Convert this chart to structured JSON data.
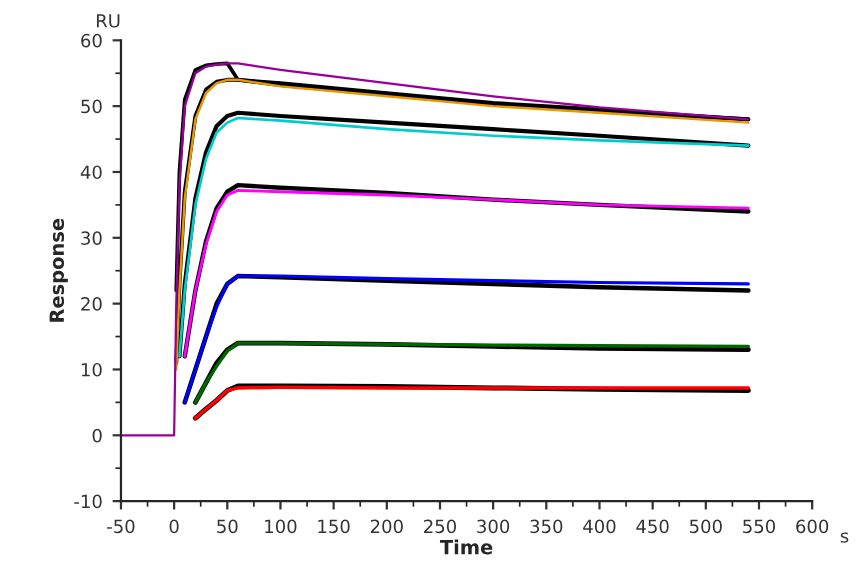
{
  "chart_data": {
    "type": "line",
    "xlabel": "Time",
    "ylabel": "Response",
    "annotations": [
      "RU",
      "s"
    ],
    "xlim": [
      -50,
      600
    ],
    "xticks": [
      -50,
      0,
      50,
      100,
      150,
      200,
      250,
      300,
      350,
      400,
      450,
      500,
      550,
      600
    ],
    "ylim": [
      -10,
      60
    ],
    "yticks": [
      -10,
      0,
      10,
      20,
      30,
      40,
      50,
      60
    ],
    "grid": false,
    "legend": false,
    "marker": "none",
    "line_style": "solid",
    "series": [
      {
        "color": "#000000",
        "x": [
          20,
          30,
          40,
          50,
          60,
          100,
          200,
          300,
          400,
          540
        ],
        "values": [
          2.6,
          4,
          5.3,
          6.8,
          7.5,
          7.5,
          7.4,
          7.2,
          7,
          6.8
        ]
      },
      {
        "color": "#000000",
        "x": [
          20,
          30,
          40,
          50,
          60,
          100,
          200,
          300,
          400,
          540
        ],
        "values": [
          5,
          8,
          11,
          13,
          14,
          14,
          13.8,
          13.5,
          13.2,
          13
        ]
      },
      {
        "color": "#000000",
        "x": [
          10,
          20,
          30,
          40,
          50,
          60,
          100,
          200,
          300,
          400,
          540
        ],
        "values": [
          5,
          10,
          15,
          20,
          23,
          24.2,
          24,
          23.5,
          23,
          22.5,
          22
        ]
      },
      {
        "color": "#000000",
        "x": [
          10,
          20,
          30,
          40,
          50,
          60,
          100,
          200,
          300,
          400,
          540
        ],
        "values": [
          12,
          22,
          29.5,
          34.5,
          37,
          38,
          37.6,
          36.8,
          35.8,
          35,
          34
        ]
      },
      {
        "color": "#000000",
        "x": [
          5,
          10,
          20,
          30,
          40,
          50,
          60,
          100,
          200,
          300,
          400,
          540
        ],
        "values": [
          12,
          23,
          36,
          43,
          47,
          48.5,
          49,
          48.5,
          47.5,
          46.5,
          45.5,
          44
        ]
      },
      {
        "color": "#000000",
        "x": [
          2,
          5,
          10,
          20,
          30,
          40,
          50,
          60,
          100,
          200,
          300,
          400,
          540
        ],
        "values": [
          11,
          23,
          37,
          48.5,
          52.5,
          53.7,
          54,
          54,
          53.2,
          51.8,
          50.3,
          49.2,
          48
        ]
      },
      {
        "color": "#000000",
        "x": [
          2,
          5,
          10,
          20,
          30,
          40,
          50,
          60,
          100,
          200,
          300,
          400,
          540
        ],
        "values": [
          22,
          40,
          51,
          55.5,
          56.2,
          56.4,
          56.5,
          54,
          53.5,
          52,
          50.5,
          49.5,
          48
        ]
      },
      {
        "color": "#ff0000",
        "x": [
          20,
          30,
          40,
          50,
          60,
          100,
          200,
          300,
          400,
          540
        ],
        "values": [
          2.6,
          4,
          5.3,
          6.8,
          7.2,
          7.3,
          7.2,
          7.2,
          7.2,
          7.2
        ]
      },
      {
        "color": "#006600",
        "x": [
          20,
          30,
          40,
          50,
          60,
          100,
          200,
          300,
          400,
          540
        ],
        "values": [
          5,
          8,
          10.5,
          12.8,
          14,
          14,
          13.8,
          13.7,
          13.6,
          13.5
        ]
      },
      {
        "color": "#0000ff",
        "x": [
          10,
          20,
          30,
          40,
          50,
          60,
          100,
          200,
          300,
          400,
          540
        ],
        "values": [
          5,
          10,
          15,
          19.5,
          23,
          24.2,
          24.2,
          23.8,
          23.5,
          23.2,
          23
        ]
      },
      {
        "color": "#ff00ff",
        "x": [
          10,
          20,
          30,
          40,
          50,
          60,
          100,
          200,
          300,
          400,
          540
        ],
        "values": [
          12,
          22,
          29,
          34,
          36.5,
          37.2,
          37,
          36.5,
          35.8,
          35,
          34.5
        ]
      },
      {
        "color": "#00cccc",
        "x": [
          5,
          10,
          20,
          30,
          40,
          50,
          60,
          100,
          200,
          300,
          400,
          540
        ],
        "values": [
          12,
          22,
          35,
          42,
          46,
          47.5,
          48.2,
          47.8,
          46.5,
          45.5,
          44.8,
          44
        ]
      },
      {
        "color": "#e69900",
        "x": [
          2,
          5,
          10,
          20,
          30,
          40,
          50,
          60,
          100,
          200,
          300,
          400,
          540
        ],
        "values": [
          10,
          22,
          36,
          48,
          52,
          53.5,
          54,
          54,
          53,
          51.5,
          50,
          49,
          47.5
        ]
      },
      {
        "color": "#990099",
        "x": [
          -50,
          0,
          2,
          5,
          10,
          20,
          30,
          40,
          50,
          60,
          100,
          200,
          300,
          400,
          540
        ],
        "values": [
          0,
          0,
          20,
          38,
          50,
          55,
          56,
          56.3,
          56.5,
          56.5,
          55.5,
          53.5,
          51.5,
          49.8,
          48
        ]
      }
    ]
  }
}
